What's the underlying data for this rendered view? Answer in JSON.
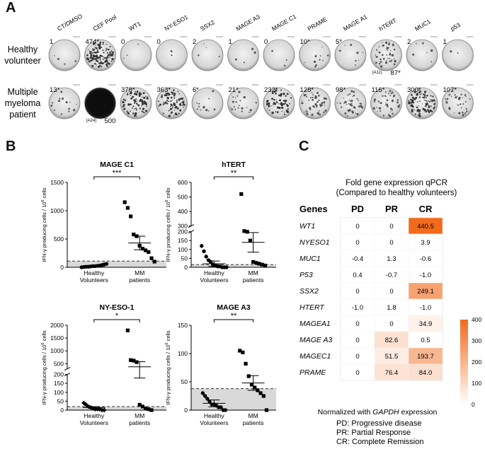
{
  "panel_a": {
    "letter": "A",
    "columns": [
      "CT/DMSO",
      "CEF Pool",
      "WT1",
      "NY-ESO1",
      "SSX2",
      "MAGE A3",
      "MAGE C1",
      "PRAME",
      "MAGE A1",
      "hTERT",
      "MUC1",
      "p53"
    ],
    "rows": [
      {
        "label": [
          "Healthy",
          "volunteer"
        ],
        "counts": [
          "1",
          "474*",
          "0",
          "0",
          "2",
          "1",
          "0",
          "10*",
          "5*",
          "",
          "2",
          "1"
        ],
        "extra": {
          "col": 9,
          "code": "(A11)",
          "count": "87*"
        }
      },
      {
        "label": [
          "Multiple",
          "myeloma",
          "patient"
        ],
        "counts": [
          "13*",
          "",
          "378*",
          "363*",
          "6*",
          "21*",
          "232*",
          "128*",
          "98*",
          "116*",
          "300*",
          "107*"
        ],
        "extra": {
          "col": 1,
          "code": "(A24)",
          "count": "500"
        }
      }
    ],
    "well_density": [
      [
        0.03,
        0.9,
        0.02,
        0.02,
        0.03,
        0.03,
        0.02,
        0.08,
        0.06,
        0.35,
        0.04,
        0.02
      ],
      [
        0.1,
        1.0,
        0.6,
        0.6,
        0.08,
        0.15,
        0.5,
        0.35,
        0.3,
        0.3,
        0.7,
        0.25
      ]
    ]
  },
  "panel_b": {
    "letter": "B",
    "ylabel_main": "IFN-γ producing cells / 10",
    "ylabel_sup": "6",
    "ylabel_tail": " cells",
    "xlabels": [
      [
        "Healthy",
        "Volunteers"
      ],
      [
        "MM",
        "patients"
      ]
    ]
  },
  "chart_data": [
    {
      "type": "scatter",
      "title": "MAGE C1",
      "significance": "***",
      "yticks": [
        0,
        500,
        1000,
        1500
      ],
      "ylim": [
        0,
        1500
      ],
      "threshold": 110,
      "groups": [
        {
          "name": "Healthy Volunteers",
          "marker": "circle",
          "values": [
            0,
            5,
            10,
            10,
            15,
            20,
            20,
            25,
            30,
            40,
            50,
            60
          ],
          "mean": 20
        },
        {
          "name": "MM patients",
          "marker": "square",
          "values": [
            1150,
            1050,
            900,
            580,
            550,
            380,
            330,
            300,
            270,
            160,
            100
          ],
          "mean": 430,
          "err": 120
        }
      ]
    },
    {
      "type": "scatter",
      "title": "hTERT",
      "significance": "**",
      "yticks_low": [
        0,
        50,
        100,
        150,
        200
      ],
      "yticks_high": [
        300,
        400,
        500,
        600
      ],
      "ylim": [
        0,
        600
      ],
      "break": [
        200,
        300
      ],
      "threshold": 15,
      "groups": [
        {
          "name": "Healthy Volunteers",
          "marker": "circle",
          "values": [
            120,
            90,
            60,
            40,
            30,
            15,
            10,
            5,
            5,
            0,
            0,
            0
          ],
          "mean": 20,
          "err": 15
        },
        {
          "name": "MM patients",
          "marker": "square",
          "values": [
            520,
            265,
            260,
            150,
            30,
            25,
            20,
            15,
            10
          ],
          "mean": 140,
          "err": 55
        }
      ]
    },
    {
      "type": "scatter",
      "title": "NY-ESO-1",
      "significance": "*",
      "yticks_low": [
        0,
        50,
        100,
        150,
        200
      ],
      "yticks_high": [
        500,
        1000,
        1500,
        2000
      ],
      "ylim": [
        0,
        2000
      ],
      "break": [
        200,
        300
      ],
      "threshold": 20,
      "groups": [
        {
          "name": "Healthy Volunteers",
          "marker": "diamond",
          "values": [
            40,
            30,
            20,
            15,
            10,
            5,
            5,
            5,
            0,
            0
          ],
          "mean": 15,
          "err": 5
        },
        {
          "name": "MM patients",
          "marker": "square",
          "values": [
            1800,
            640,
            620,
            560,
            30,
            20,
            10,
            5,
            0
          ],
          "mean": 380,
          "err": 200
        }
      ]
    },
    {
      "type": "scatter",
      "title": "MAGE A3",
      "significance": "**",
      "yticks": [
        0,
        50,
        100,
        150
      ],
      "ylim": [
        0,
        150
      ],
      "threshold": 38,
      "groups": [
        {
          "name": "Healthy Volunteers",
          "marker": "circle",
          "values": [
            30,
            25,
            20,
            15,
            10,
            10,
            8,
            5,
            5,
            0,
            0
          ],
          "mean": 12,
          "err": 6
        },
        {
          "name": "MM patients",
          "marker": "square",
          "values": [
            105,
            102,
            82,
            60,
            45,
            40,
            35,
            30,
            25,
            0
          ],
          "mean": 48,
          "err": 13
        }
      ]
    },
    {
      "type": "heatmap",
      "title": [
        "Fold gene expression qPCR",
        "(Compared to healthy volunteers)"
      ],
      "row_header": "Genes",
      "columns": [
        "PD",
        "PR",
        "CR"
      ],
      "rows": [
        "WT1",
        "NYESO1",
        "MUC1",
        "P53",
        "SSX2",
        "HTERT",
        "MAGEA1",
        "MAGE A3",
        "MAGEC1",
        "PRAME"
      ],
      "values": [
        [
          "0",
          "0",
          "440.5"
        ],
        [
          "0",
          "0",
          "3.9"
        ],
        [
          "-0.4",
          "1.3",
          "-0.6"
        ],
        [
          "0.4",
          "-0.7",
          "-1.0"
        ],
        [
          "0",
          "0",
          "249.1"
        ],
        [
          "-1.0",
          "1.8",
          "-1.0"
        ],
        [
          "0",
          "0",
          "34.9"
        ],
        [
          "0",
          "82.6",
          "0.5"
        ],
        [
          "0",
          "51.5",
          "193.7"
        ],
        [
          "0",
          "76.4",
          "84.0"
        ]
      ],
      "color_range": [
        0,
        400
      ],
      "colorbar_ticks": [
        0,
        100,
        200,
        300,
        400
      ],
      "color_low": "#ffffff",
      "color_high": "#f26a1b"
    }
  ],
  "panel_c": {
    "letter": "C",
    "normalized_pre": "Normalized with ",
    "normalized_gene": "GAPDH",
    "normalized_post": " expression",
    "legend": [
      "PD: Progressive disease",
      "PR: Partial Response",
      "CR: Complete Remission"
    ]
  }
}
